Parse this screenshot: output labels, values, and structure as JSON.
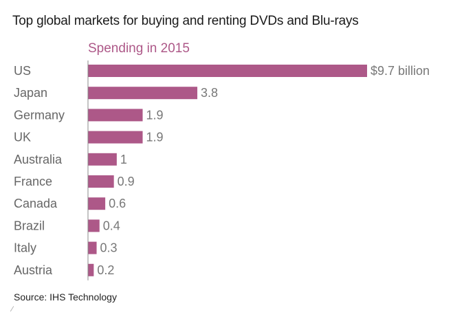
{
  "title": "Top global markets for buying and renting DVDs and Blu-rays",
  "subtitle": "Spending in 2015",
  "source": "Source: IHS Technology",
  "colors": {
    "bar": "#ad5888",
    "subtitle": "#ad5888",
    "category_label": "#666666",
    "value_label": "#777777",
    "axis": "#888888"
  },
  "chart_data": {
    "type": "bar",
    "orientation": "horizontal",
    "title": "Top global markets for buying and renting DVDs and Blu-rays",
    "subtitle": "Spending in 2015",
    "categories": [
      "US",
      "Japan",
      "Germany",
      "UK",
      "Australia",
      "France",
      "Canada",
      "Brazil",
      "Italy",
      "Austria"
    ],
    "values": [
      9.7,
      3.8,
      1.9,
      1.9,
      1,
      0.9,
      0.6,
      0.4,
      0.3,
      0.2
    ],
    "value_labels": [
      "$9.7 billion",
      "3.8",
      "1.9",
      "1.9",
      "1",
      "0.9",
      "0.6",
      "0.4",
      "0.3",
      "0.2"
    ],
    "xlim": [
      0,
      9.7
    ],
    "grid": false,
    "legend": "none"
  }
}
